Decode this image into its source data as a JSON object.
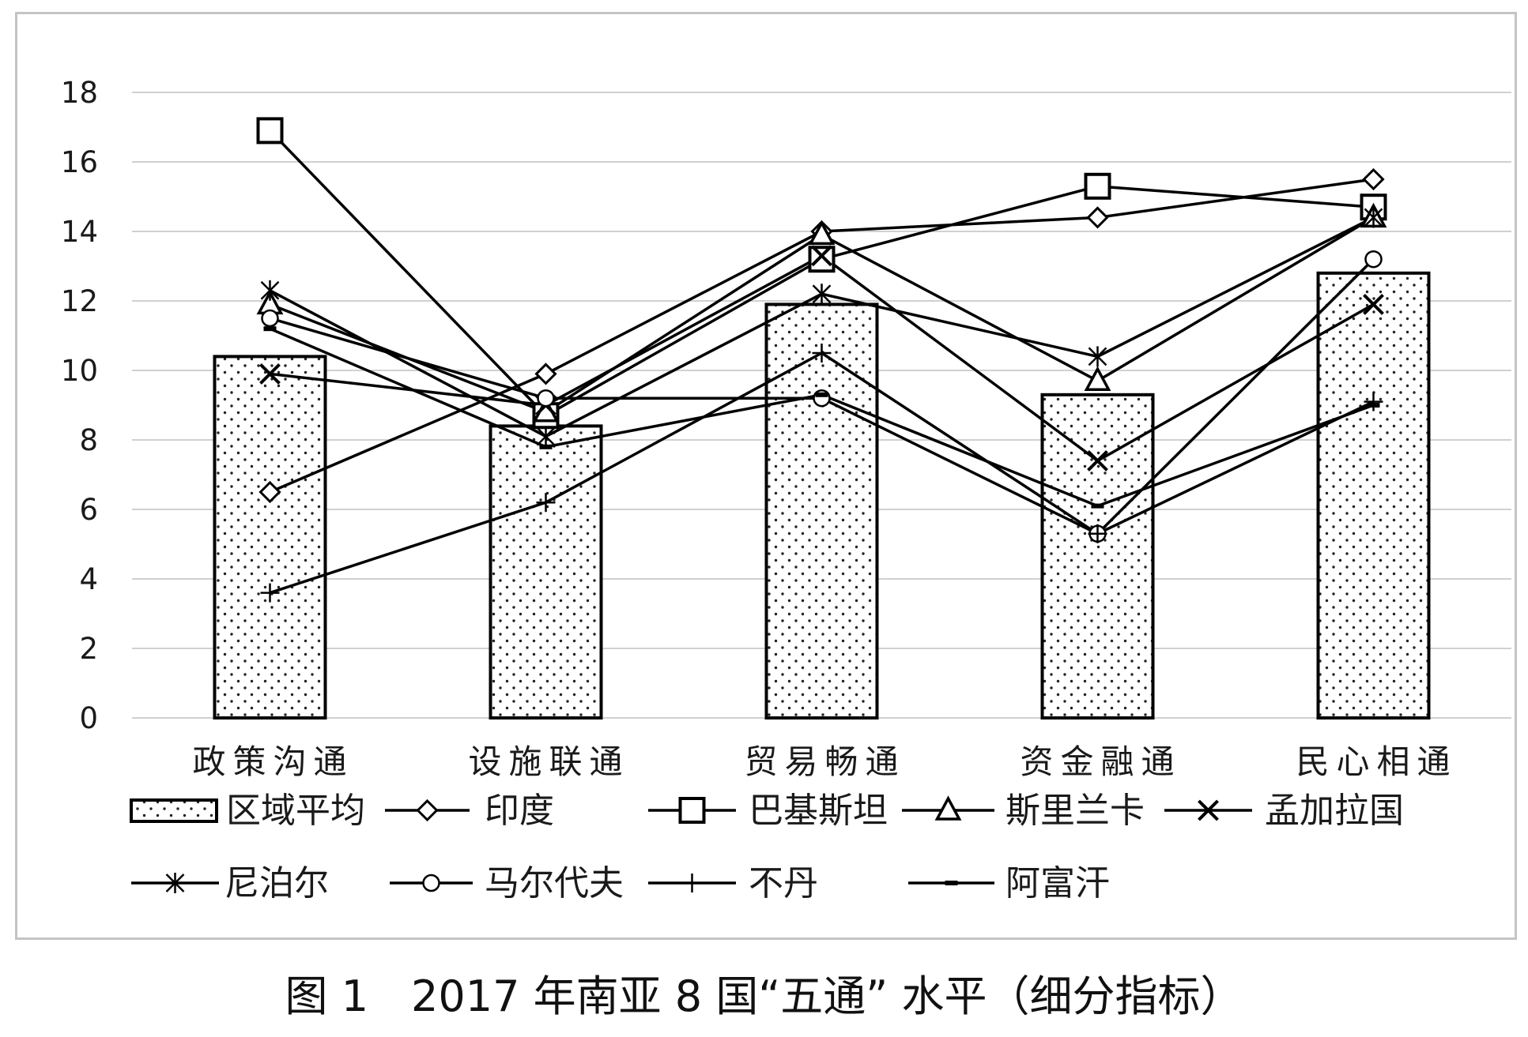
{
  "caption": "图 1　2017 年南亚 8 国“五通” 水平（细分指标）",
  "chart_data": {
    "type": "bar",
    "title": "",
    "xlabel": "",
    "ylabel": "",
    "ylim": [
      0,
      18
    ],
    "yticks": [
      0,
      2,
      4,
      6,
      8,
      10,
      12,
      14,
      16,
      18
    ],
    "grid": true,
    "grid_color": "#d0d0d0",
    "line_color": "#000000",
    "legend_position": "bottom",
    "categories": [
      "政策沟通",
      "设施联通",
      "贸易畅通",
      "资金融通",
      "民心相通"
    ],
    "series": [
      {
        "name": "区域平均",
        "type": "bar",
        "marker": "dotted-box",
        "values": [
          10.4,
          8.4,
          11.9,
          9.3,
          12.8
        ]
      },
      {
        "name": "印度",
        "type": "line",
        "marker": "diamond",
        "values": [
          6.5,
          9.9,
          14.0,
          14.4,
          15.5
        ]
      },
      {
        "name": "巴基斯坦",
        "type": "line",
        "marker": "square",
        "values": [
          16.9,
          8.7,
          13.2,
          15.3,
          14.7
        ]
      },
      {
        "name": "斯里兰卡",
        "type": "line",
        "marker": "triangle",
        "values": [
          11.9,
          8.8,
          13.9,
          9.7,
          14.4
        ]
      },
      {
        "name": "孟加拉国",
        "type": "line",
        "marker": "x",
        "values": [
          9.9,
          9.0,
          13.3,
          7.4,
          11.9
        ]
      },
      {
        "name": "尼泊尔",
        "type": "line",
        "marker": "asterisk",
        "values": [
          12.3,
          8.1,
          12.2,
          10.4,
          14.4
        ]
      },
      {
        "name": "马尔代夫",
        "type": "line",
        "marker": "circle",
        "values": [
          11.5,
          9.2,
          9.2,
          5.3,
          13.2
        ]
      },
      {
        "name": "不丹",
        "type": "line",
        "marker": "plus",
        "values": [
          3.6,
          6.2,
          10.5,
          5.3,
          9.1
        ]
      },
      {
        "name": "阿富汗",
        "type": "line",
        "marker": "dash",
        "values": [
          11.2,
          7.8,
          9.3,
          6.1,
          9.0
        ]
      }
    ]
  }
}
